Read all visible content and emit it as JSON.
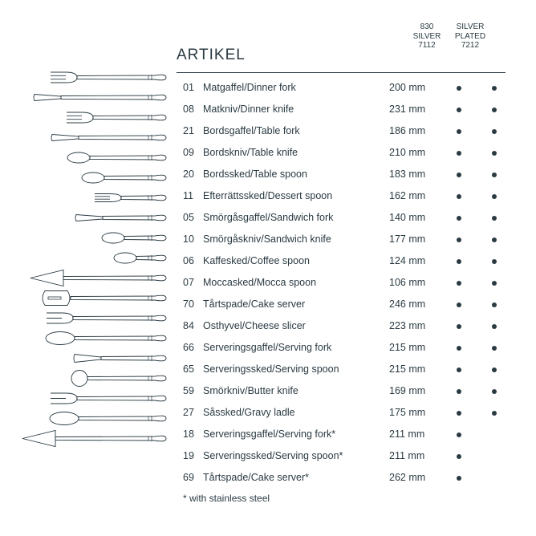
{
  "title": "ARTIKEL",
  "columns": {
    "a": {
      "l1": "830",
      "l2": "SILVER",
      "l3": "7112"
    },
    "b": {
      "l1": "SILVER",
      "l2": "PLATED",
      "l3": "7212"
    }
  },
  "footnote": "* with stainless steel",
  "colors": {
    "text": "#2a3a42",
    "bg": "#ffffff",
    "stroke": "#2a3a42"
  },
  "items": [
    {
      "num": "01",
      "name": "Matgaffel/Dinner fork",
      "size": "200 mm",
      "a": true,
      "b": true
    },
    {
      "num": "08",
      "name": "Matkniv/Dinner knife",
      "size": "231 mm",
      "a": true,
      "b": true
    },
    {
      "num": "21",
      "name": "Bordsgaffel/Table fork",
      "size": "186 mm",
      "a": true,
      "b": true
    },
    {
      "num": "09",
      "name": "Bordskniv/Table knife",
      "size": "210 mm",
      "a": true,
      "b": true
    },
    {
      "num": "20",
      "name": "Bordssked/Table spoon",
      "size": "183 mm",
      "a": true,
      "b": true
    },
    {
      "num": "11",
      "name": "Efterrättssked/Dessert spoon",
      "size": "162 mm",
      "a": true,
      "b": true
    },
    {
      "num": "05",
      "name": "Smörgåsgaffel/Sandwich fork",
      "size": "140 mm",
      "a": true,
      "b": true
    },
    {
      "num": "10",
      "name": "Smörgåskniv/Sandwich knife",
      "size": "177 mm",
      "a": true,
      "b": true
    },
    {
      "num": "06",
      "name": "Kaffesked/Coffee spoon",
      "size": "124 mm",
      "a": true,
      "b": true
    },
    {
      "num": "07",
      "name": "Moccasked/Mocca spoon",
      "size": "106 mm",
      "a": true,
      "b": true
    },
    {
      "num": "70",
      "name": "Tårtspade/Cake server",
      "size": "246 mm",
      "a": true,
      "b": true
    },
    {
      "num": "84",
      "name": "Osthyvel/Cheese slicer",
      "size": "223 mm",
      "a": true,
      "b": true
    },
    {
      "num": "66",
      "name": "Serveringsgaffel/Serving fork",
      "size": "215 mm",
      "a": true,
      "b": true
    },
    {
      "num": "65",
      "name": "Serveringssked/Serving spoon",
      "size": "215 mm",
      "a": true,
      "b": true
    },
    {
      "num": "59",
      "name": "Smörkniv/Butter knife",
      "size": "169 mm",
      "a": true,
      "b": true
    },
    {
      "num": "27",
      "name": "Såssked/Gravy ladle",
      "size": "175 mm",
      "a": true,
      "b": true
    },
    {
      "num": "18",
      "name": "Serveringsgaffel/Serving fork*",
      "size": "211 mm",
      "a": true,
      "b": false
    },
    {
      "num": "19",
      "name": "Serveringssked/Serving spoon*",
      "size": "211 mm",
      "a": true,
      "b": false
    },
    {
      "num": "69",
      "name": "Tårtspade/Cake server*",
      "size": "262 mm",
      "a": true,
      "b": false
    }
  ],
  "icons": [
    {
      "kind": "fork",
      "len": 150
    },
    {
      "kind": "knife",
      "len": 170
    },
    {
      "kind": "fork",
      "len": 130
    },
    {
      "kind": "knife",
      "len": 148
    },
    {
      "kind": "spoon",
      "len": 128
    },
    {
      "kind": "spoon",
      "len": 110
    },
    {
      "kind": "fork-small",
      "len": 95
    },
    {
      "kind": "knife",
      "len": 118
    },
    {
      "kind": "spoon",
      "len": 85
    },
    {
      "kind": "spoon",
      "len": 70
    },
    {
      "kind": "cake-server",
      "len": 175
    },
    {
      "kind": "cheese",
      "len": 160
    },
    {
      "kind": "serv-fork",
      "len": 155
    },
    {
      "kind": "serv-spoon",
      "len": 155
    },
    {
      "kind": "butter",
      "len": 120
    },
    {
      "kind": "ladle",
      "len": 125
    },
    {
      "kind": "serv-fork",
      "len": 150
    },
    {
      "kind": "serv-spoon",
      "len": 150
    },
    {
      "kind": "cake-server",
      "len": 185
    }
  ]
}
